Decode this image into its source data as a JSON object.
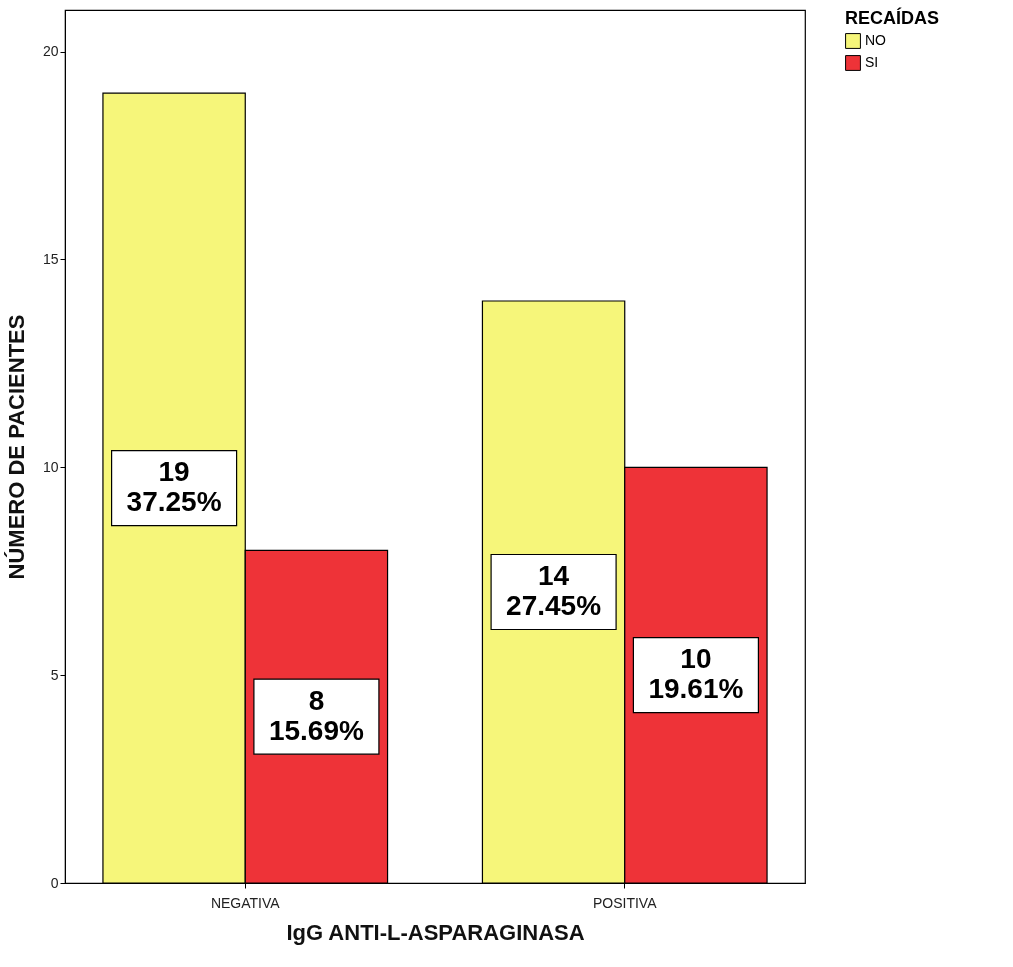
{
  "chart_data": {
    "type": "bar",
    "xlabel": "IgG ANTI-L-ASPARAGINASA",
    "ylabel": "NÚMERO DE PACIENTES",
    "legend_title": "RECAÍDAS",
    "categories": [
      "NEGATIVA",
      "POSITIVA"
    ],
    "series": [
      {
        "name": "NO",
        "color": "#f6f67a",
        "values": [
          19,
          14
        ],
        "value_labels": [
          "19\n37.25%",
          "14\n27.45%"
        ]
      },
      {
        "name": "SI",
        "color": "#ee3338",
        "values": [
          8,
          10
        ],
        "value_labels": [
          "8\n15.69%",
          "10\n19.61%"
        ]
      }
    ],
    "ylim": [
      0,
      21
    ],
    "yticks": [
      0,
      5,
      10,
      15,
      20
    ],
    "grid": false,
    "legend": "right"
  }
}
